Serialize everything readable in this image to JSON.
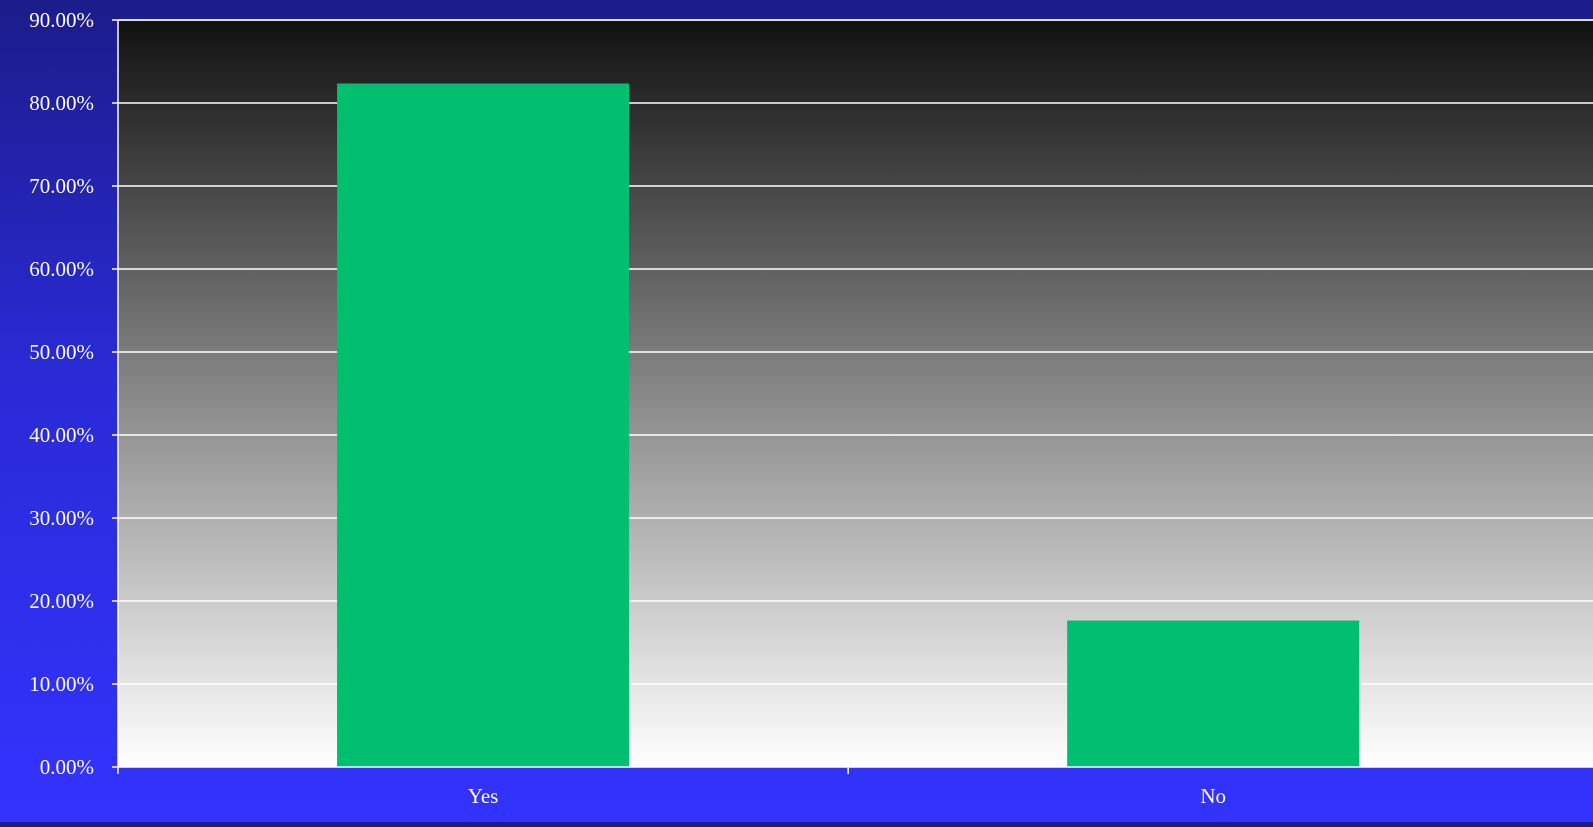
{
  "chart_data": {
    "type": "bar",
    "categories": [
      "Yes",
      "No"
    ],
    "values": [
      82.35,
      17.65
    ],
    "title": "",
    "xlabel": "",
    "ylabel": "",
    "ylim": [
      0,
      90
    ],
    "ytick_step": 10,
    "ytick_labels": [
      "0.00%",
      "10.00%",
      "20.00%",
      "30.00%",
      "40.00%",
      "50.00%",
      "60.00%",
      "70.00%",
      "80.00%",
      "90.00%"
    ],
    "grid": true,
    "legend": "none",
    "colors": {
      "bar": "#00bf6f",
      "plot_top": "#111111",
      "plot_bottom": "#ffffff",
      "gridline": "#ffffff",
      "text": "#ffffff"
    }
  }
}
